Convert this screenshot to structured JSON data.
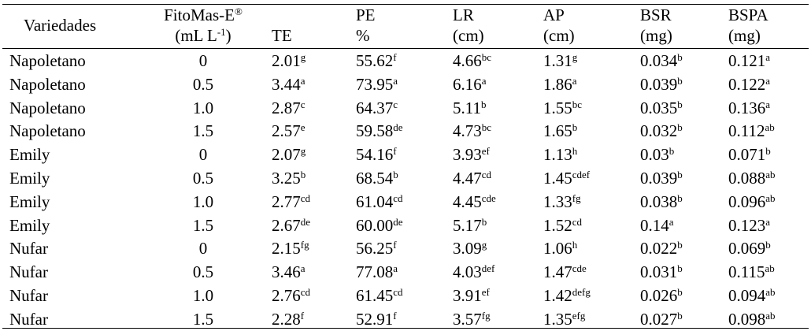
{
  "table": {
    "header": [
      {
        "lines": [
          [
            {
              "t": "Variedades"
            }
          ]
        ]
      },
      {
        "lines": [
          [
            {
              "t": "FitoMas-E"
            },
            {
              "t": "®",
              "sup": true
            }
          ],
          [
            {
              "t": "(mL L"
            },
            {
              "t": "-1",
              "sup": true
            },
            {
              "t": ")"
            }
          ]
        ]
      },
      {
        "lines": [
          [
            {
              "t": "TE"
            }
          ]
        ]
      },
      {
        "lines": [
          [
            {
              "t": "PE"
            }
          ],
          [
            {
              "t": "%"
            }
          ]
        ]
      },
      {
        "lines": [
          [
            {
              "t": "LR"
            }
          ],
          [
            {
              "t": "(cm)"
            }
          ]
        ]
      },
      {
        "lines": [
          [
            {
              "t": "AP"
            }
          ],
          [
            {
              "t": "(cm)"
            }
          ]
        ]
      },
      {
        "lines": [
          [
            {
              "t": "BSR"
            }
          ],
          [
            {
              "t": "(mg)"
            }
          ]
        ]
      },
      {
        "lines": [
          [
            {
              "t": "BSPA"
            }
          ],
          [
            {
              "t": "(mg)"
            }
          ]
        ]
      }
    ],
    "rows": [
      [
        "Napoletano",
        "0",
        {
          "v": "2.01",
          "s": "g"
        },
        {
          "v": "55.62",
          "s": "f"
        },
        {
          "v": "4.66",
          "s": "bc"
        },
        {
          "v": "1.31",
          "s": "g"
        },
        {
          "v": "0.034",
          "s": "b"
        },
        {
          "v": "0.121",
          "s": "a"
        }
      ],
      [
        "Napoletano",
        "0.5",
        {
          "v": "3.44",
          "s": "a"
        },
        {
          "v": "73.95",
          "s": "a"
        },
        {
          "v": "6.16",
          "s": "a"
        },
        {
          "v": "1.86",
          "s": "a"
        },
        {
          "v": "0.039",
          "s": "b"
        },
        {
          "v": "0.122",
          "s": "a"
        }
      ],
      [
        "Napoletano",
        "1.0",
        {
          "v": "2.87",
          "s": "c"
        },
        {
          "v": "64.37",
          "s": "c"
        },
        {
          "v": "5.11",
          "s": "b"
        },
        {
          "v": "1.55",
          "s": "bc"
        },
        {
          "v": "0.035",
          "s": "b"
        },
        {
          "v": "0.136",
          "s": "a"
        }
      ],
      [
        "Napoletano",
        "1.5",
        {
          "v": "2.57",
          "s": "e"
        },
        {
          "v": "59.58",
          "s": "de"
        },
        {
          "v": "4.73",
          "s": "bc"
        },
        {
          "v": "1.65",
          "s": "b"
        },
        {
          "v": "0.032",
          "s": "b"
        },
        {
          "v": "0.112",
          "s": "ab"
        }
      ],
      [
        "Emily",
        "0",
        {
          "v": "2.07",
          "s": "g"
        },
        {
          "v": "54.16",
          "s": "f"
        },
        {
          "v": "3.93",
          "s": "ef"
        },
        {
          "v": "1.13",
          "s": "h"
        },
        {
          "v": "0.03",
          "s": "b"
        },
        {
          "v": "0.071",
          "s": "b"
        }
      ],
      [
        "Emily",
        "0.5",
        {
          "v": "3.25",
          "s": "b"
        },
        {
          "v": "68.54",
          "s": "b"
        },
        {
          "v": "4.47",
          "s": "cd"
        },
        {
          "v": "1.45",
          "s": "cdef"
        },
        {
          "v": "0.039",
          "s": "b"
        },
        {
          "v": "0.088",
          "s": "ab"
        }
      ],
      [
        "Emily",
        "1.0",
        {
          "v": "2.77",
          "s": "cd"
        },
        {
          "v": "61.04",
          "s": "cd"
        },
        {
          "v": "4.45",
          "s": "cde"
        },
        {
          "v": "1.33",
          "s": "fg"
        },
        {
          "v": "0.038",
          "s": "b"
        },
        {
          "v": "0.096",
          "s": "ab"
        }
      ],
      [
        "Emily",
        "1.5",
        {
          "v": "2.67",
          "s": "de"
        },
        {
          "v": "60.00",
          "s": "de"
        },
        {
          "v": "5.17",
          "s": "b"
        },
        {
          "v": "1.52",
          "s": "cd"
        },
        {
          "v": "0.14",
          "s": "a"
        },
        {
          "v": "0.123",
          "s": "a"
        }
      ],
      [
        "Nufar",
        "0",
        {
          "v": "2.15",
          "s": "fg"
        },
        {
          "v": "56.25",
          "s": "f"
        },
        {
          "v": "3.09",
          "s": "g"
        },
        {
          "v": "1.06",
          "s": "h"
        },
        {
          "v": "0.022",
          "s": "b"
        },
        {
          "v": "0.069",
          "s": "b"
        }
      ],
      [
        "Nufar",
        "0.5",
        {
          "v": "3.46",
          "s": "a"
        },
        {
          "v": "77.08",
          "s": "a"
        },
        {
          "v": "4.03",
          "s": "def"
        },
        {
          "v": "1.47",
          "s": "cde"
        },
        {
          "v": "0.031",
          "s": "b"
        },
        {
          "v": "0.115",
          "s": "ab"
        }
      ],
      [
        "Nufar",
        "1.0",
        {
          "v": "2.76",
          "s": "cd"
        },
        {
          "v": "61.45",
          "s": "cd"
        },
        {
          "v": "3.91",
          "s": "ef"
        },
        {
          "v": "1.42",
          "s": "defg"
        },
        {
          "v": "0.026",
          "s": "b"
        },
        {
          "v": "0.094",
          "s": "ab"
        }
      ],
      [
        "Nufar",
        "1.5",
        {
          "v": "2.28",
          "s": "f"
        },
        {
          "v": "52.91",
          "s": "f"
        },
        {
          "v": "3.57",
          "s": "fg"
        },
        {
          "v": "1.35",
          "s": "efg"
        },
        {
          "v": "0.027",
          "s": "b"
        },
        {
          "v": "0.098",
          "s": "ab"
        }
      ]
    ]
  }
}
